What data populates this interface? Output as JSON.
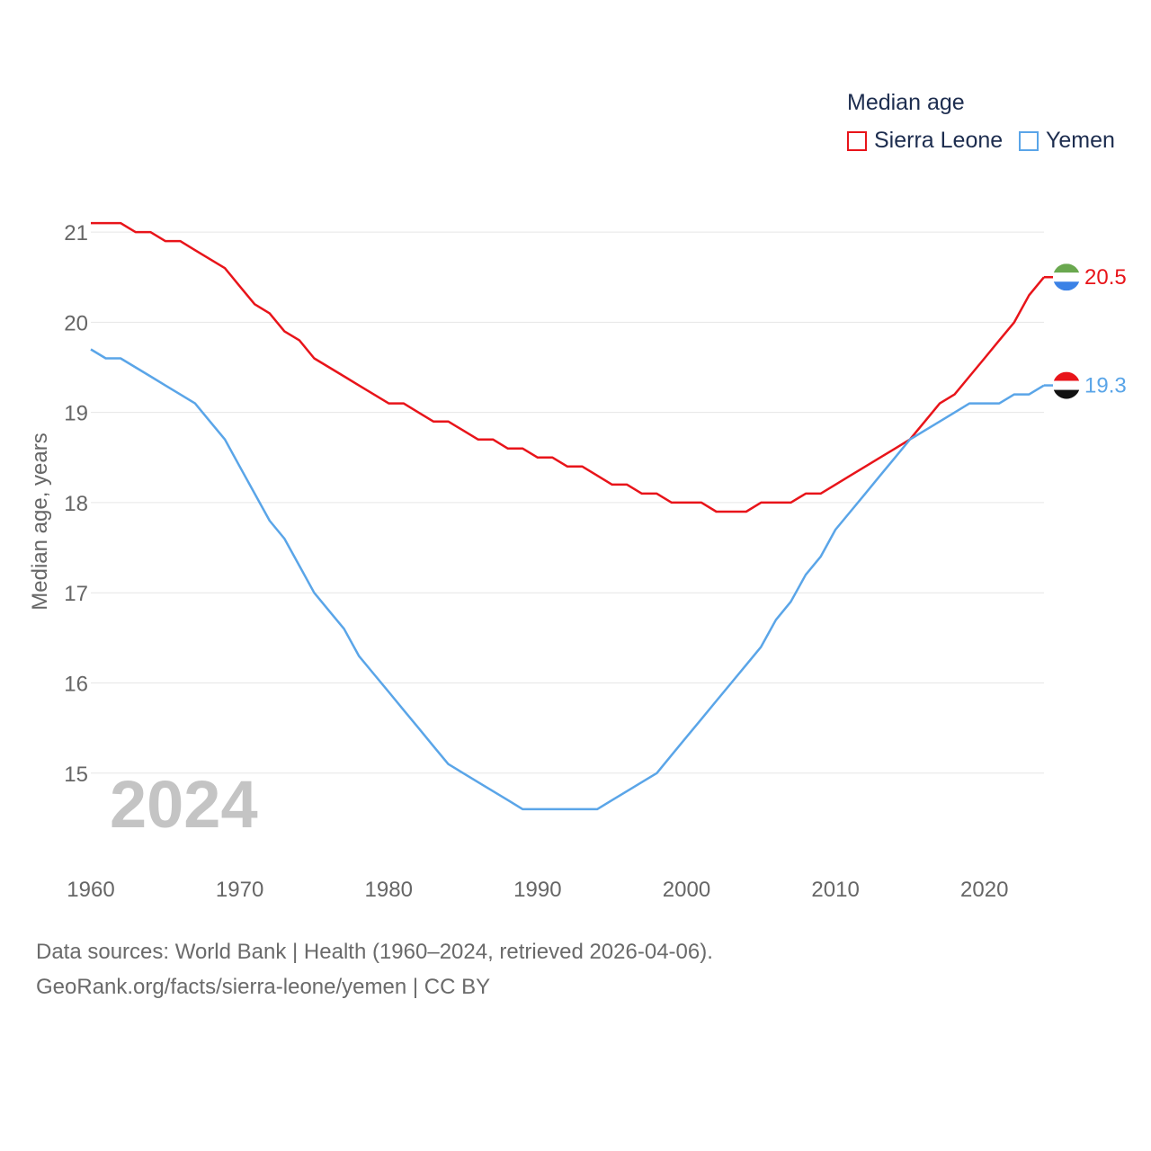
{
  "chart_data": {
    "type": "line",
    "legend_title": "Median age",
    "ylabel": "Median age, years",
    "xlabel": "",
    "year_label": "2024",
    "xlim": [
      1960,
      2024
    ],
    "ylim": [
      14.1,
      21.4
    ],
    "x_ticks": [
      "1960",
      "1970",
      "1980",
      "1990",
      "2000",
      "2010",
      "2020"
    ],
    "y_ticks": [
      "15",
      "16",
      "17",
      "18",
      "19",
      "20",
      "21"
    ],
    "x": [
      1960,
      1961,
      1962,
      1963,
      1964,
      1965,
      1966,
      1967,
      1968,
      1969,
      1970,
      1971,
      1972,
      1973,
      1974,
      1975,
      1976,
      1977,
      1978,
      1979,
      1980,
      1981,
      1982,
      1983,
      1984,
      1985,
      1986,
      1987,
      1988,
      1989,
      1990,
      1991,
      1992,
      1993,
      1994,
      1995,
      1996,
      1997,
      1998,
      1999,
      2000,
      2001,
      2002,
      2003,
      2004,
      2005,
      2006,
      2007,
      2008,
      2009,
      2010,
      2011,
      2012,
      2013,
      2014,
      2015,
      2016,
      2017,
      2018,
      2019,
      2020,
      2021,
      2022,
      2023,
      2024
    ],
    "series": [
      {
        "name": "Sierra Leone",
        "color": "#e8141a",
        "end_label": "20.5",
        "values": [
          21.1,
          21.1,
          21.1,
          21.0,
          21.0,
          20.9,
          20.9,
          20.8,
          20.7,
          20.6,
          20.4,
          20.2,
          20.1,
          19.9,
          19.8,
          19.6,
          19.5,
          19.4,
          19.3,
          19.2,
          19.1,
          19.1,
          19.0,
          18.9,
          18.9,
          18.8,
          18.7,
          18.7,
          18.6,
          18.6,
          18.5,
          18.5,
          18.4,
          18.4,
          18.3,
          18.2,
          18.2,
          18.1,
          18.1,
          18.0,
          18.0,
          18.0,
          17.9,
          17.9,
          17.9,
          18.0,
          18.0,
          18.0,
          18.1,
          18.1,
          18.2,
          18.3,
          18.4,
          18.5,
          18.6,
          18.7,
          18.9,
          19.1,
          19.2,
          19.4,
          19.6,
          19.8,
          20.0,
          20.3,
          20.5
        ]
      },
      {
        "name": "Yemen",
        "color": "#5aa5e8",
        "end_label": "19.3",
        "values": [
          19.7,
          19.6,
          19.6,
          19.5,
          19.4,
          19.3,
          19.2,
          19.1,
          18.9,
          18.7,
          18.4,
          18.1,
          17.8,
          17.6,
          17.3,
          17.0,
          16.8,
          16.6,
          16.3,
          16.1,
          15.9,
          15.7,
          15.5,
          15.3,
          15.1,
          15.0,
          14.9,
          14.8,
          14.7,
          14.6,
          14.6,
          14.6,
          14.6,
          14.6,
          14.6,
          14.7,
          14.8,
          14.9,
          15.0,
          15.2,
          15.4,
          15.6,
          15.8,
          16.0,
          16.2,
          16.4,
          16.7,
          16.9,
          17.2,
          17.4,
          17.7,
          17.9,
          18.1,
          18.3,
          18.5,
          18.7,
          18.8,
          18.9,
          19.0,
          19.1,
          19.1,
          19.1,
          19.2,
          19.2,
          19.3
        ]
      }
    ]
  },
  "footer": {
    "source_line": "Data sources: World Bank | Health (1960–2024, retrieved 2026-04-06).",
    "credit_line": "GeoRank.org/facts/sierra-leone/yemen | CC BY"
  },
  "flags": {
    "sierra_leone": {
      "top": "#6aa84f",
      "middle": "#ffffff",
      "bottom": "#3b82e6"
    },
    "yemen": {
      "top": "#e8141a",
      "middle": "#ffffff",
      "bottom": "#111111"
    }
  }
}
